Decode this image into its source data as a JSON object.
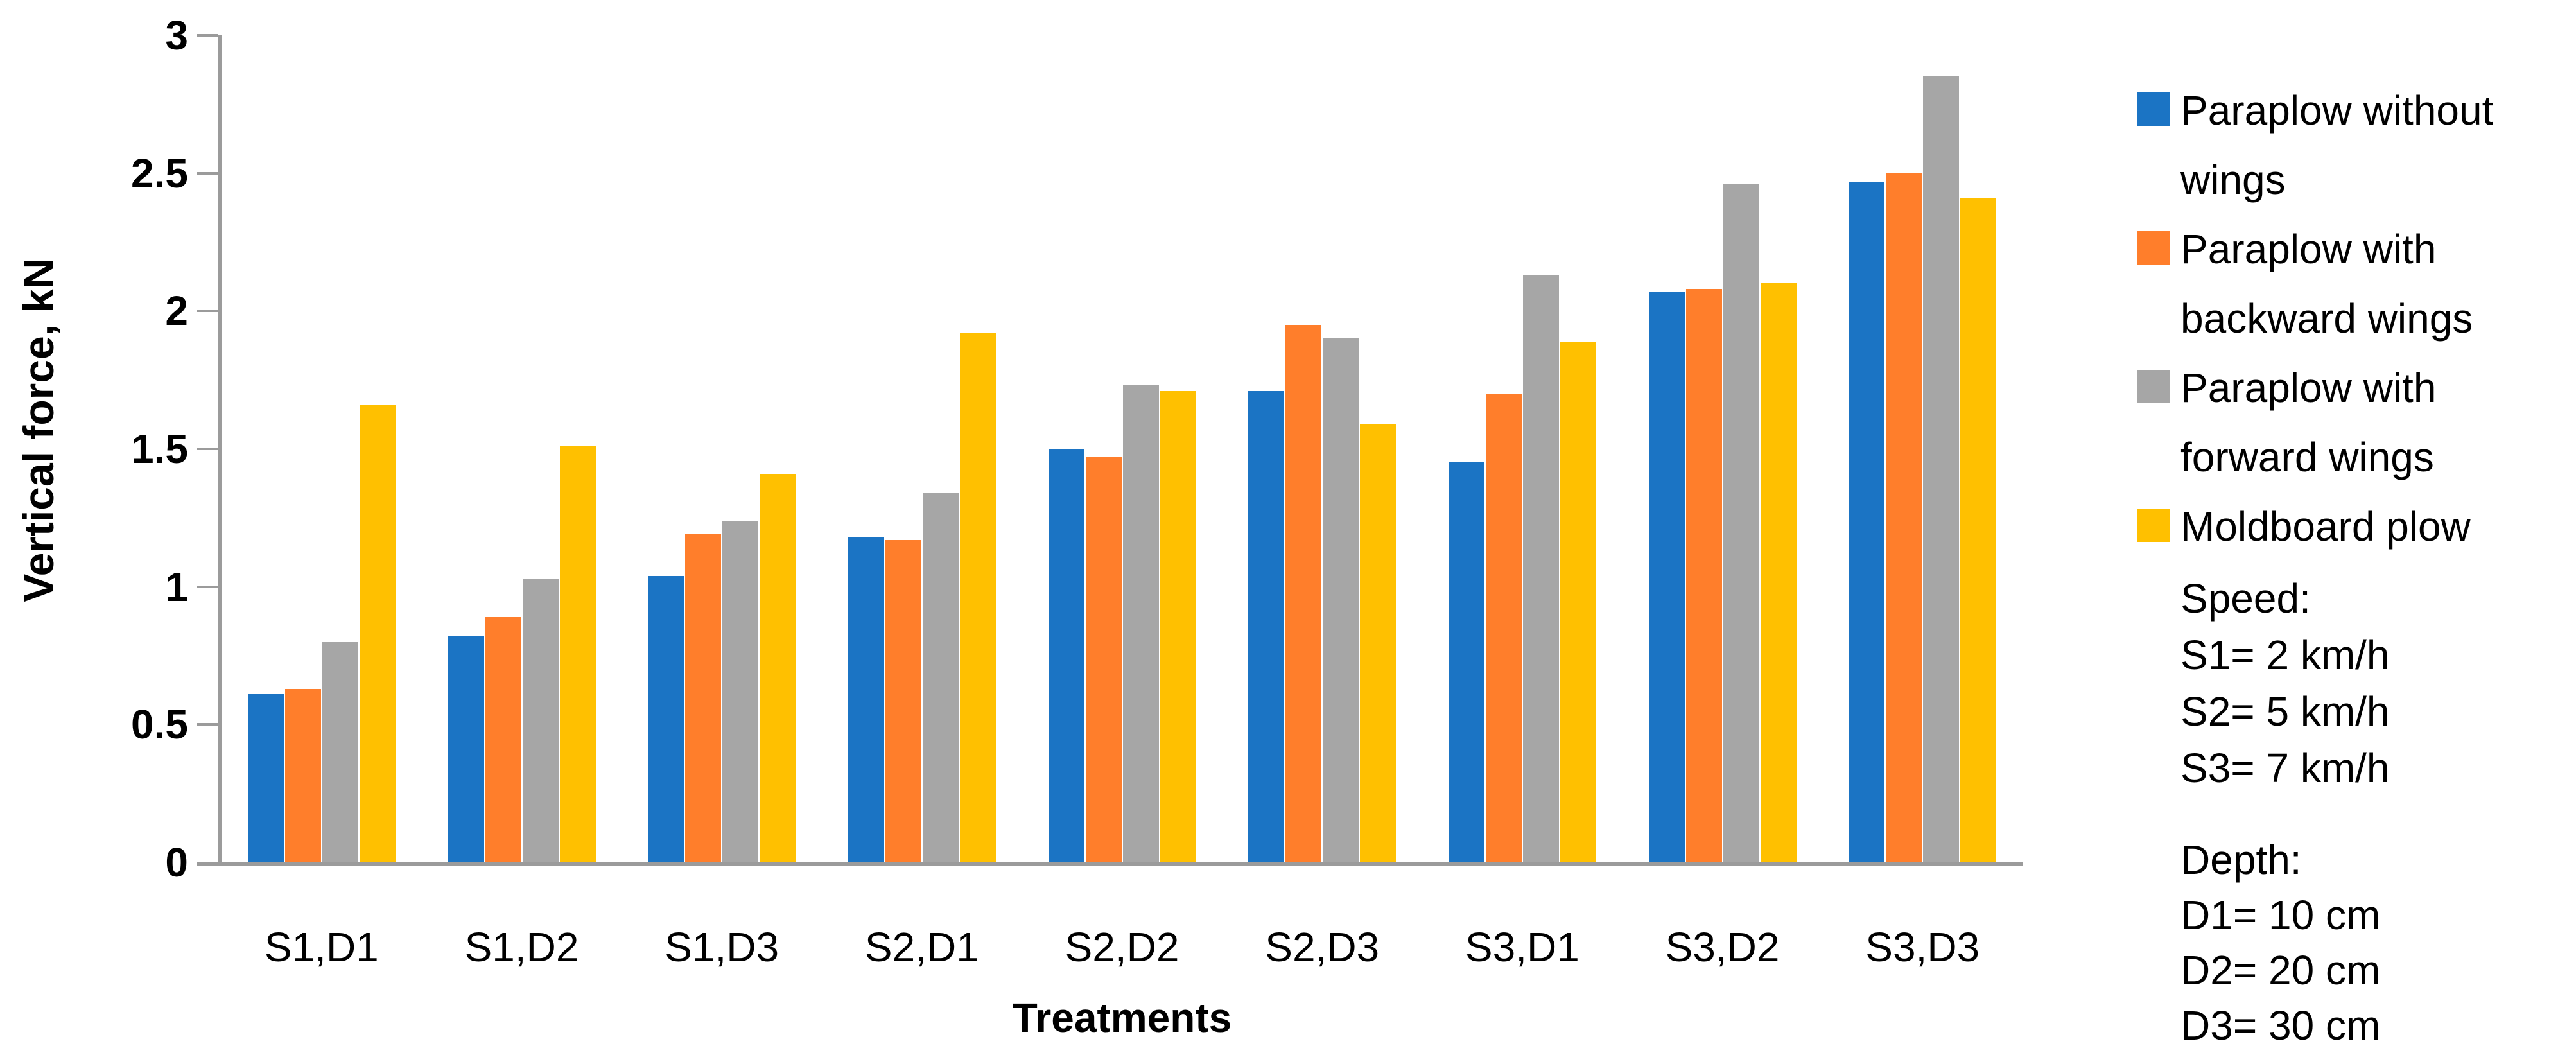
{
  "chart_data": {
    "type": "bar",
    "title": "",
    "xlabel": "Treatments",
    "ylabel": "Vertical force, kN",
    "ylim": [
      0,
      3
    ],
    "yticks": [
      0,
      0.5,
      1,
      1.5,
      2,
      2.5,
      3
    ],
    "grid": false,
    "legend_position": "right-outside",
    "categories": [
      "S1,D1",
      "S1,D2",
      "S1,D3",
      "S2,D1",
      "S2,D2",
      "S2,D3",
      "S3,D1",
      "S3,D2",
      "S3,D3"
    ],
    "series": [
      {
        "name": "Paraplow without wings",
        "color": "#1B74C4",
        "values": [
          0.61,
          0.82,
          1.04,
          1.18,
          1.5,
          1.71,
          1.45,
          2.07,
          2.47
        ]
      },
      {
        "name": "Paraplow with backward wings",
        "color": "#FF7E2B",
        "values": [
          0.63,
          0.89,
          1.19,
          1.17,
          1.47,
          1.95,
          1.7,
          2.08,
          2.5
        ]
      },
      {
        "name": "Paraplow with forward wings",
        "color": "#A6A6A6",
        "values": [
          0.8,
          1.03,
          1.24,
          1.34,
          1.73,
          1.9,
          2.13,
          2.46,
          2.85
        ]
      },
      {
        "name": "Moldboard plow",
        "color": "#FFC000",
        "values": [
          1.66,
          1.51,
          1.41,
          1.92,
          1.71,
          1.59,
          1.89,
          2.1,
          2.41
        ]
      }
    ],
    "annotations": {
      "speed": {
        "title": "Speed:",
        "lines": [
          "S1= 2 km/h",
          "S2= 5 km/h",
          "S3= 7 km/h"
        ]
      },
      "depth": {
        "title": "Depth:",
        "lines": [
          "D1= 10 cm",
          "D2= 20 cm",
          "D3= 30 cm"
        ]
      }
    },
    "axis_color": "#9B9B9B",
    "text_color": "#000000"
  }
}
